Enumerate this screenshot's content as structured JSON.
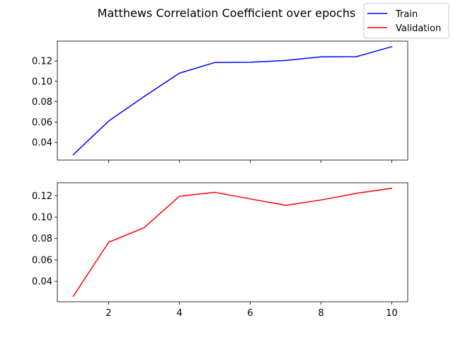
{
  "chart_data": {
    "type": "line",
    "title": "Matthews Correlation Coefficient over epochs",
    "legend": {
      "placement": "top-right",
      "entries": [
        {
          "label": "Train",
          "color": "#0000ff"
        },
        {
          "label": "Validation",
          "color": "#ff0000"
        }
      ]
    },
    "subplots": [
      {
        "series_name": "Train",
        "color": "#0000ff",
        "x": [
          1,
          2,
          3,
          4,
          5,
          6,
          7,
          8,
          9,
          10
        ],
        "y": [
          0.028,
          0.061,
          0.085,
          0.108,
          0.1185,
          0.1187,
          0.1205,
          0.124,
          0.1242,
          0.134
        ],
        "xlim": [
          0.55,
          10.45
        ],
        "ylim": [
          0.0227,
          0.1395
        ],
        "yticks": [
          0.04,
          0.06,
          0.08,
          0.1,
          0.12
        ],
        "ytick_labels": [
          "0.04",
          "0.06",
          "0.08",
          "0.10",
          "0.12"
        ],
        "xticks": [
          2,
          4,
          6,
          8,
          10
        ],
        "show_xtick_labels": false
      },
      {
        "series_name": "Validation",
        "color": "#ff0000",
        "x": [
          1,
          2,
          3,
          4,
          5,
          6,
          7,
          8,
          9,
          10
        ],
        "y": [
          0.026,
          0.0765,
          0.09,
          0.1195,
          0.1232,
          0.117,
          0.111,
          0.116,
          0.1222,
          0.127
        ],
        "xlim": [
          0.55,
          10.45
        ],
        "ylim": [
          0.0209,
          0.1321
        ],
        "yticks": [
          0.04,
          0.06,
          0.08,
          0.1,
          0.12
        ],
        "ytick_labels": [
          "0.04",
          "0.06",
          "0.08",
          "0.10",
          "0.12"
        ],
        "xticks": [
          2,
          4,
          6,
          8,
          10
        ],
        "xtick_labels": [
          "2",
          "4",
          "6",
          "8",
          "10"
        ],
        "show_xtick_labels": true
      }
    ]
  }
}
